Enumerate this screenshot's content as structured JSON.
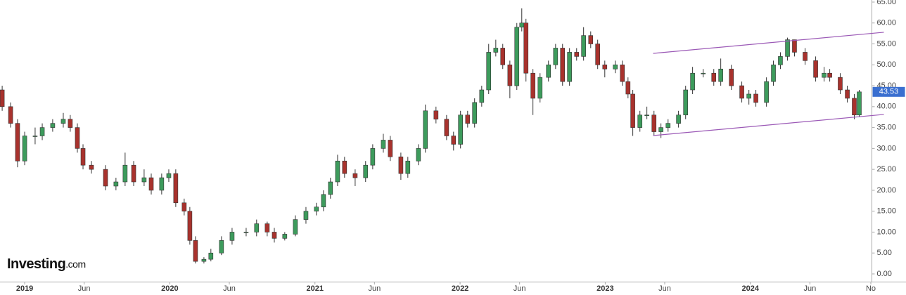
{
  "chart_data": {
    "type": "candlestick",
    "x": [
      2018.845,
      2018.903,
      2018.951,
      2019.0,
      2019.072,
      2019.121,
      2019.193,
      2019.266,
      2019.314,
      2019.363,
      2019.402,
      2019.46,
      2019.557,
      2019.629,
      2019.692,
      2019.751,
      2019.823,
      2019.872,
      2019.944,
      2019.993,
      2020.041,
      2020.099,
      2020.138,
      2020.177,
      2020.235,
      2020.283,
      2020.356,
      2020.429,
      2020.526,
      2020.598,
      2020.671,
      2020.72,
      2020.792,
      2020.865,
      2020.938,
      2021.01,
      2021.059,
      2021.107,
      2021.156,
      2021.204,
      2021.277,
      2021.349,
      2021.398,
      2021.471,
      2021.519,
      2021.592,
      2021.64,
      2021.713,
      2021.761,
      2021.834,
      2021.907,
      2021.955,
      2022.003,
      2022.052,
      2022.1,
      2022.149,
      2022.197,
      2022.246,
      2022.294,
      2022.343,
      2022.391,
      2022.425,
      2022.454,
      2022.502,
      2022.551,
      2022.609,
      2022.658,
      2022.706,
      2022.754,
      2022.803,
      2022.851,
      2022.9,
      2022.948,
      2022.997,
      2023.069,
      2023.118,
      2023.157,
      2023.19,
      2023.239,
      2023.287,
      2023.336,
      2023.384,
      2023.433,
      2023.505,
      2023.554,
      2023.602,
      2023.675,
      2023.748,
      2023.796,
      2023.869,
      2023.941,
      2023.99,
      2024.038,
      2024.111,
      2024.159,
      2024.207,
      2024.256,
      2024.304,
      2024.377,
      2024.45,
      2024.508,
      2024.547,
      2024.619,
      2024.668,
      2024.716,
      2024.75
    ],
    "open": [
      44,
      40,
      36,
      27,
      33,
      33,
      35,
      36,
      37,
      35,
      30,
      26,
      25,
      21,
      22,
      26,
      22,
      23,
      20,
      23,
      24,
      17,
      15,
      8,
      3,
      3.5,
      5,
      8,
      10,
      10,
      12,
      10,
      8.5,
      9.5,
      13,
      15,
      16,
      19,
      22,
      27,
      24,
      23,
      26,
      30,
      32,
      28,
      24,
      27,
      30,
      39,
      37,
      33,
      31,
      38,
      36,
      41,
      44,
      53,
      54,
      50,
      45,
      59,
      60,
      48,
      42,
      47,
      50,
      54,
      46,
      53,
      52,
      57,
      55,
      50,
      49,
      50,
      46,
      43,
      35,
      38,
      38,
      34,
      35,
      36,
      38,
      44,
      48,
      48,
      46,
      49,
      45,
      42,
      43,
      41,
      46,
      50,
      52,
      56,
      53,
      51,
      47,
      48,
      47,
      44,
      42,
      38
    ],
    "high": [
      45,
      41,
      37,
      34,
      35,
      36,
      37,
      38.5,
      38,
      36,
      31,
      27,
      26,
      23,
      29,
      27,
      25,
      24,
      24,
      25,
      25,
      18,
      16,
      9,
      4,
      6,
      9,
      11,
      11,
      13,
      12.5,
      11,
      10,
      14,
      16,
      17,
      20,
      23,
      28.5,
      28,
      25,
      27,
      31,
      33.5,
      33,
      29,
      28,
      31,
      40.5,
      40,
      38,
      34,
      39,
      39,
      42,
      45,
      55,
      56,
      55,
      51,
      60,
      63.5,
      61,
      49,
      48,
      51,
      55,
      55,
      54,
      54,
      59,
      58,
      56,
      51,
      51,
      51,
      47,
      44,
      39,
      40,
      39,
      36,
      37,
      39,
      45,
      49.5,
      49,
      49,
      51.5,
      50,
      46,
      44,
      44,
      47,
      51,
      53,
      56.5,
      56,
      54,
      52,
      49.5,
      49,
      48,
      45,
      43,
      44
    ],
    "low": [
      39,
      35,
      25.5,
      26,
      31,
      32,
      34,
      35,
      34,
      29,
      25,
      24,
      20,
      20,
      21,
      21,
      21,
      19,
      19,
      22,
      16,
      14,
      7,
      2.5,
      2.5,
      3,
      4.5,
      7,
      9,
      9,
      9,
      7.5,
      8,
      9,
      12,
      14,
      15,
      18,
      21,
      23,
      21,
      22,
      25,
      29,
      27,
      22.5,
      23,
      26,
      29,
      36,
      32,
      29.5,
      30,
      35,
      35,
      40,
      43,
      52,
      49,
      42,
      44,
      58,
      46,
      38,
      41,
      46,
      49,
      45,
      45,
      51,
      51,
      54,
      49,
      47,
      48,
      45,
      42,
      33,
      34,
      37,
      33,
      32.5,
      34,
      35,
      37,
      43,
      47,
      45,
      45,
      44,
      41,
      40.5,
      40,
      40,
      45,
      49,
      51,
      52,
      50,
      46,
      46,
      46,
      43,
      41,
      37,
      37.5
    ],
    "close": [
      40,
      36,
      27,
      33,
      33,
      35,
      36,
      37,
      35,
      30,
      26,
      25,
      21,
      22,
      26,
      22,
      23,
      20,
      23,
      24,
      17,
      15,
      8,
      3,
      3.5,
      5,
      8,
      10,
      10,
      12,
      10,
      8.5,
      9.5,
      13,
      15,
      16,
      19,
      22,
      27,
      24,
      23,
      26,
      30,
      32,
      28,
      24,
      27,
      30,
      39,
      37,
      33,
      31,
      38,
      36,
      41,
      44,
      53,
      54,
      50,
      45,
      59,
      60,
      48,
      42,
      47,
      50,
      54,
      46,
      53,
      52,
      57,
      55,
      50,
      49,
      50,
      46,
      43,
      35,
      38,
      38,
      34,
      35,
      36,
      38,
      44,
      48,
      48,
      46,
      49,
      45,
      42,
      43,
      41,
      46,
      50,
      52,
      56,
      53,
      51,
      47,
      48,
      47,
      44,
      42,
      38,
      43.53
    ],
    "up_color": "#3d9b5c",
    "down_color": "#a8322d",
    "line_color": "#9b59b6",
    "trendlines": [
      {
        "x": [
          2023.33,
          2024.92
        ],
        "y": [
          52.74,
          57.78
        ]
      },
      {
        "x": [
          2023.33,
          2024.92
        ],
        "y": [
          33.09,
          38.13
        ]
      }
    ],
    "xlim": [
      2018.83,
      2024.83
    ],
    "ylim": [
      -1.85,
      65.5
    ],
    "xticks": [
      {
        "value": 2019.0,
        "label": "2019"
      },
      {
        "value": 2019.41,
        "label": "Jun"
      },
      {
        "value": 2020.0,
        "label": "2020"
      },
      {
        "value": 2020.41,
        "label": "Jun"
      },
      {
        "value": 2021.0,
        "label": "2021"
      },
      {
        "value": 2021.41,
        "label": "Jun"
      },
      {
        "value": 2022.0,
        "label": "2022"
      },
      {
        "value": 2022.41,
        "label": "Jun"
      },
      {
        "value": 2023.0,
        "label": "2023"
      },
      {
        "value": 2023.41,
        "label": "Jun"
      },
      {
        "value": 2024.0,
        "label": "2024"
      },
      {
        "value": 2024.41,
        "label": "Jun"
      },
      {
        "value": 2024.83,
        "label": "No"
      }
    ],
    "yticks": [
      {
        "value": 0,
        "label": "0.00"
      },
      {
        "value": 5,
        "label": "5.00"
      },
      {
        "value": 10,
        "label": "10.00"
      },
      {
        "value": 15,
        "label": "15.00"
      },
      {
        "value": 20,
        "label": "20.00"
      },
      {
        "value": 25,
        "label": "25.00"
      },
      {
        "value": 30,
        "label": "30.00"
      },
      {
        "value": 35,
        "label": "35.00"
      },
      {
        "value": 40,
        "label": "40.00"
      },
      {
        "value": 45,
        "label": "45.00"
      },
      {
        "value": 50,
        "label": "50.00"
      },
      {
        "value": 55,
        "label": "55.00"
      },
      {
        "value": 60,
        "label": "60.00"
      },
      {
        "value": 65,
        "label": "65.00"
      }
    ],
    "watermark": "Investing",
    "watermark_suffix": ".com"
  }
}
